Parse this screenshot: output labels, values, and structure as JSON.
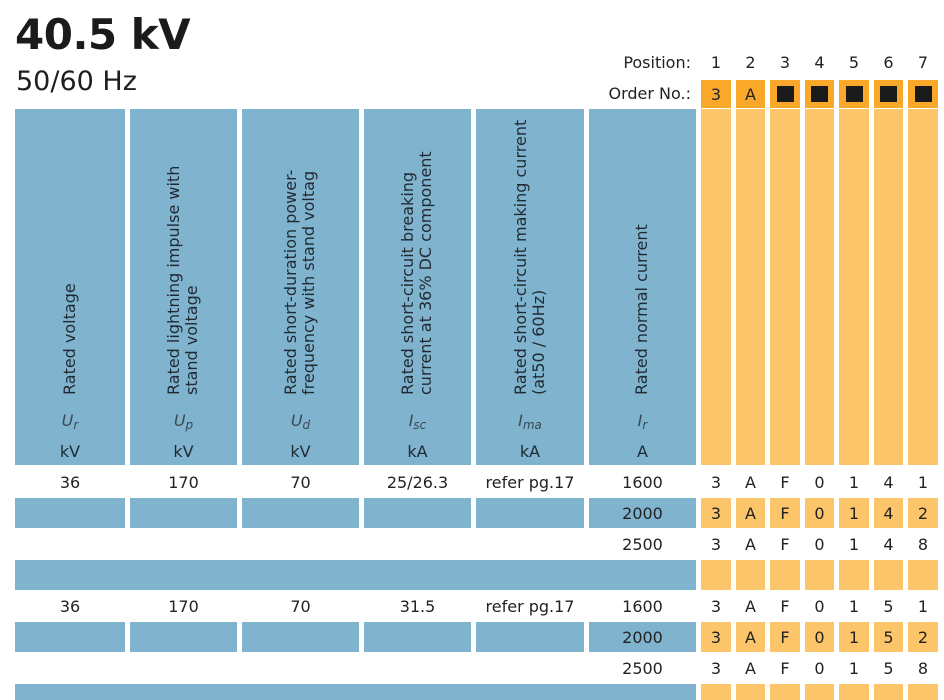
{
  "header": {
    "title": "40.5 kV",
    "subtitle": "50/60 Hz"
  },
  "position_row": {
    "label": "Position:",
    "positions": [
      "1",
      "2",
      "3",
      "4",
      "5",
      "6",
      "7"
    ]
  },
  "order_row": {
    "label": "Order No.:",
    "values": [
      "3",
      "A",
      "■",
      "■",
      "■",
      "■",
      "■"
    ],
    "filled_icon": "black-square-placeholder"
  },
  "columns": [
    {
      "title_lines": [
        "Rated voltage"
      ],
      "symbol": "U",
      "subscript": "r",
      "unit": "kV"
    },
    {
      "title_lines": [
        "Rated lightning impulse with",
        "stand voltage"
      ],
      "symbol": "U",
      "subscript": "p",
      "unit": "kV"
    },
    {
      "title_lines": [
        "Rated short-duration power-",
        "frequency with stand voltag"
      ],
      "symbol": "U",
      "subscript": "d",
      "unit": "kV"
    },
    {
      "title_lines": [
        "Rated short-circuit breaking",
        "current at 36% DC component"
      ],
      "symbol": "I",
      "subscript": "sc",
      "unit": "kA"
    },
    {
      "title_lines": [
        "Rated short-circuit making current",
        "(at50 / 60Hz)"
      ],
      "symbol": "I",
      "subscript": "ma",
      "unit": "kA"
    },
    {
      "title_lines": [
        "Rated normal current"
      ],
      "symbol": "I",
      "subscript": "r",
      "unit": "A"
    }
  ],
  "groups": [
    {
      "rated_voltage": "36",
      "lightning_impulse": "170",
      "power_frequency": "70",
      "breaking_current": "25/26.3",
      "making_current": "refer pg.17",
      "rows": [
        {
          "normal_current": "1600",
          "order_code": [
            "3",
            "A",
            "F",
            "0",
            "1",
            "4",
            "1"
          ]
        },
        {
          "normal_current": "2000",
          "order_code": [
            "3",
            "A",
            "F",
            "0",
            "1",
            "4",
            "2"
          ]
        },
        {
          "normal_current": "2500",
          "order_code": [
            "3",
            "A",
            "F",
            "0",
            "1",
            "4",
            "8"
          ]
        }
      ]
    },
    {
      "rated_voltage": "36",
      "lightning_impulse": "170",
      "power_frequency": "70",
      "breaking_current": "31.5",
      "making_current": "refer pg.17",
      "rows": [
        {
          "normal_current": "1600",
          "order_code": [
            "3",
            "A",
            "F",
            "0",
            "1",
            "5",
            "1"
          ]
        },
        {
          "normal_current": "2000",
          "order_code": [
            "3",
            "A",
            "F",
            "0",
            "1",
            "5",
            "2"
          ]
        },
        {
          "normal_current": "2500",
          "order_code": [
            "3",
            "A",
            "F",
            "0",
            "1",
            "5",
            "8"
          ]
        }
      ]
    }
  ],
  "colors": {
    "header_blue": "#80b3cd",
    "order_orange_dark": "#f9a82a",
    "order_orange_light": "#fdc56a",
    "text": "#222222"
  }
}
